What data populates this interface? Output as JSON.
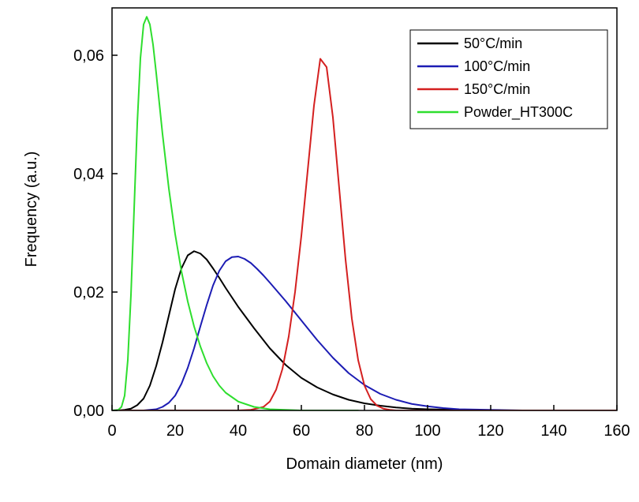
{
  "chart_data": {
    "type": "line",
    "xlabel": "Domain diameter (nm)",
    "ylabel": "Frequency (a.u.)",
    "xlim": [
      0,
      160
    ],
    "ylim": [
      0,
      0.068
    ],
    "x_ticks": [
      0,
      20,
      40,
      60,
      80,
      100,
      120,
      140,
      160
    ],
    "x_tick_labels": [
      "0",
      "20",
      "40",
      "60",
      "80",
      "100",
      "120",
      "140",
      "160"
    ],
    "y_ticks": [
      0,
      0.02,
      0.04,
      0.06
    ],
    "y_tick_labels": [
      "0,00",
      "0,02",
      "0,04",
      "0,06"
    ],
    "grid": false,
    "legend_position": "top-right",
    "series": [
      {
        "name": "50°C/min",
        "color": "#000000",
        "x": [
          0,
          2,
          4,
          6,
          8,
          10,
          12,
          14,
          16,
          18,
          20,
          22,
          24,
          26,
          28,
          30,
          32,
          34,
          36,
          38,
          40,
          45,
          50,
          55,
          60,
          65,
          70,
          75,
          80,
          85,
          90,
          95,
          100,
          110,
          120,
          130
        ],
        "y": [
          0,
          0,
          0.0001,
          0.0003,
          0.0009,
          0.002,
          0.0042,
          0.0075,
          0.0115,
          0.016,
          0.0205,
          0.024,
          0.0262,
          0.0269,
          0.0265,
          0.0255,
          0.024,
          0.0224,
          0.0207,
          0.0191,
          0.0175,
          0.0139,
          0.0105,
          0.0077,
          0.0055,
          0.0039,
          0.0027,
          0.0018,
          0.0012,
          0.0008,
          0.0005,
          0.0003,
          0.0002,
          0.0001,
          0,
          0
        ]
      },
      {
        "name": "100°C/min",
        "color": "#1c1cb4",
        "x": [
          0,
          5,
          10,
          14,
          16,
          18,
          20,
          22,
          24,
          26,
          28,
          30,
          32,
          34,
          36,
          38,
          40,
          42,
          44,
          46,
          48,
          50,
          55,
          60,
          65,
          70,
          75,
          80,
          85,
          90,
          95,
          100,
          105,
          110,
          120,
          130
        ],
        "y": [
          0,
          0,
          0,
          0.0002,
          0.0006,
          0.0013,
          0.0025,
          0.0045,
          0.0072,
          0.0105,
          0.0142,
          0.0178,
          0.0211,
          0.0236,
          0.0252,
          0.0259,
          0.026,
          0.0256,
          0.0249,
          0.0239,
          0.0228,
          0.0216,
          0.0185,
          0.0152,
          0.0119,
          0.0089,
          0.0063,
          0.0043,
          0.0028,
          0.0018,
          0.0011,
          0.0007,
          0.0004,
          0.0002,
          0.0001,
          0
        ]
      },
      {
        "name": "150°C/min",
        "color": "#d42020",
        "x": [
          0,
          30,
          40,
          44,
          48,
          50,
          52,
          54,
          56,
          58,
          60,
          62,
          64,
          66,
          68,
          70,
          72,
          74,
          76,
          78,
          80,
          82,
          84,
          86,
          88,
          90,
          95,
          100,
          120,
          140,
          160
        ],
        "y": [
          0,
          0,
          0,
          0.0001,
          0.0006,
          0.0015,
          0.0035,
          0.007,
          0.0125,
          0.02,
          0.0295,
          0.0405,
          0.0515,
          0.0594,
          0.058,
          0.0495,
          0.0375,
          0.0255,
          0.0155,
          0.0085,
          0.0042,
          0.0019,
          0.0008,
          0.0003,
          0.0001,
          0,
          0,
          0,
          0,
          0,
          0
        ]
      },
      {
        "name": "Powder_HT300C",
        "color": "#2ede2e",
        "x": [
          0,
          2,
          3,
          4,
          5,
          6,
          7,
          8,
          9,
          10,
          11,
          12,
          13,
          14,
          16,
          18,
          20,
          22,
          24,
          26,
          28,
          30,
          32,
          34,
          36,
          40,
          45,
          50,
          55,
          60,
          65,
          70,
          75,
          78
        ],
        "y": [
          0,
          0.0001,
          0.0006,
          0.0025,
          0.0085,
          0.0195,
          0.034,
          0.0485,
          0.0595,
          0.0652,
          0.0665,
          0.0652,
          0.0618,
          0.057,
          0.0467,
          0.0375,
          0.0298,
          0.0235,
          0.0184,
          0.0142,
          0.0108,
          0.008,
          0.0058,
          0.0042,
          0.003,
          0.0015,
          0.0006,
          0.0002,
          0.0001,
          0,
          0,
          0,
          0,
          0
        ]
      }
    ]
  }
}
